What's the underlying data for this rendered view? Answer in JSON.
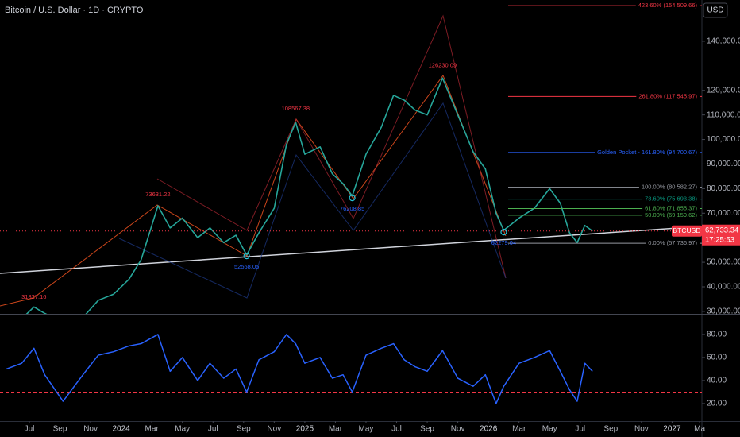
{
  "header": {
    "title": "Bitcoin / U.S. Dollar · 1D · CRYPTO",
    "currency": "USD"
  },
  "chart_data": [
    {
      "type": "line",
      "x": [
        4.5,
        5.5,
        6.3,
        7,
        8.2,
        9.5,
        10.5,
        11.5,
        12.5,
        13.3,
        14.4,
        15.2,
        16,
        17,
        17.8,
        18.7,
        19.5,
        20.2,
        21,
        22,
        22.8,
        23.4,
        24,
        25,
        25.8,
        26.5,
        27.1,
        28,
        29,
        29.8,
        30.5,
        31.2,
        32,
        33,
        34,
        35,
        35.8,
        36.5,
        37,
        38,
        39,
        40,
        40.7,
        41.3,
        41.8,
        42.3,
        42.8
      ],
      "series": [
        {
          "name": "BTCUSD",
          "color": "#26a69a",
          "values": [
            28500,
            27000,
            31800,
            29200,
            25500,
            27500,
            34500,
            37000,
            43000,
            51000,
            73000,
            64000,
            68000,
            60000,
            64000,
            58000,
            61000,
            53000,
            62000,
            72000,
            98000,
            107000,
            94000,
            97000,
            86000,
            82000,
            77000,
            94000,
            105000,
            118000,
            116000,
            112000,
            110000,
            125000,
            110000,
            95000,
            88000,
            70000,
            63000,
            68000,
            72000,
            80000,
            74000,
            62000,
            58000,
            65000,
            62733.34
          ]
        }
      ],
      "xlim": [
        4.08,
        49.95
      ],
      "ylim": [
        29000,
        156800
      ],
      "yticks": [
        {
          "value": 30000,
          "label": "30,000.00"
        },
        {
          "value": 40000,
          "label": "40,000.00"
        },
        {
          "value": 50000,
          "label": "50,000.00"
        },
        {
          "value": 70000,
          "label": "70,000.00"
        },
        {
          "value": 80000,
          "label": "80,000.00"
        },
        {
          "value": 90000,
          "label": "90,000.00"
        },
        {
          "value": 100000,
          "label": "100,000.00"
        },
        {
          "value": 110000,
          "label": "110,000.00"
        },
        {
          "value": 120000,
          "label": "120,000.00"
        },
        {
          "value": 140000,
          "label": "140,000.00"
        }
      ],
      "last_price": {
        "value": 62733.34,
        "label": "62,733.34"
      },
      "countdown": "17:25:53",
      "pivots": [
        {
          "x": 6.3,
          "value": 31827.16,
          "color": "#f23645",
          "side": "high"
        },
        {
          "x": 14.4,
          "value": 73631.22,
          "color": "#f23645",
          "side": "high"
        },
        {
          "x": 20.2,
          "value": 52568.05,
          "color": "#2962ff",
          "side": "low"
        },
        {
          "x": 23.4,
          "value": 108567.38,
          "color": "#f23645",
          "side": "high"
        },
        {
          "x": 27.1,
          "value": 76208.85,
          "color": "#2962ff",
          "side": "low"
        },
        {
          "x": 33,
          "value": 126230.09,
          "color": "#f23645",
          "side": "high"
        },
        {
          "x": 37,
          "value": 62279.04,
          "color": "#2962ff",
          "side": "low"
        }
      ],
      "fib_levels": [
        {
          "value": 154509.66,
          "label": "423.60% (154,509.66)",
          "color": "#f23645"
        },
        {
          "value": 117545.97,
          "label": "261.80% (117,545.97)",
          "color": "#f23645"
        },
        {
          "value": 94700.67,
          "label": "Golden Pocket - 161.80% (94,700.67)",
          "color": "#2962ff"
        },
        {
          "value": 80582.27,
          "label": "100.00% (80,582.27)",
          "color": "#9598a1"
        },
        {
          "value": 75693.38,
          "label": "78.60% (75,693.38)",
          "color": "#089981"
        },
        {
          "value": 71855.37,
          "label": "61.80% (71,855.37)",
          "color": "#4caf50"
        },
        {
          "value": 69159.62,
          "label": "50.00% (69,159.62)",
          "color": "#4caf50"
        },
        {
          "value": 57736.97,
          "label": "0.00% (57,736.97)",
          "color": "#9598a1"
        }
      ]
    },
    {
      "type": "line",
      "x": [
        4.5,
        5.5,
        6.3,
        7,
        8.2,
        9.5,
        10.5,
        11.5,
        12.5,
        13.3,
        14.4,
        15.2,
        16,
        17,
        17.8,
        18.7,
        19.5,
        20.2,
        21,
        22,
        22.8,
        23.4,
        24,
        25,
        25.8,
        26.5,
        27.1,
        28,
        29,
        29.8,
        30.5,
        31.2,
        32,
        33,
        34,
        35,
        35.8,
        36.5,
        37,
        38,
        39,
        40,
        40.7,
        41.3,
        41.8,
        42.3,
        42.8
      ],
      "series": [
        {
          "color": "#2962ff",
          "values": [
            50,
            55,
            68,
            45,
            22,
            45,
            62,
            65,
            70,
            72,
            80,
            48,
            60,
            40,
            55,
            42,
            50,
            30,
            58,
            65,
            80,
            72,
            55,
            60,
            42,
            45,
            30,
            62,
            68,
            72,
            58,
            52,
            48,
            66,
            42,
            35,
            45,
            20,
            35,
            55,
            60,
            66,
            48,
            32,
            22,
            55,
            48
          ]
        }
      ],
      "xlim": [
        4.08,
        49.95
      ],
      "ylim": [
        4.8,
        97.2
      ],
      "yticks": [
        {
          "value": 20,
          "label": "20.00"
        },
        {
          "value": 40,
          "label": "40.00"
        },
        {
          "value": 60,
          "label": "60.00"
        },
        {
          "value": 80,
          "label": "80.00"
        }
      ],
      "levels": [
        {
          "value": 70,
          "color": "#4caf50"
        },
        {
          "value": 50,
          "color": "#787b86"
        },
        {
          "value": 30,
          "color": "#f23645"
        }
      ],
      "xticks": [
        {
          "value": 6,
          "label": "Jul"
        },
        {
          "value": 8,
          "label": "Sep"
        },
        {
          "value": 10,
          "label": "Nov"
        },
        {
          "value": 12,
          "label": "2024"
        },
        {
          "value": 14,
          "label": "Mar"
        },
        {
          "value": 16,
          "label": "May"
        },
        {
          "value": 18,
          "label": "Jul"
        },
        {
          "value": 20,
          "label": "Sep"
        },
        {
          "value": 22,
          "label": "Nov"
        },
        {
          "value": 24,
          "label": "2025"
        },
        {
          "value": 26,
          "label": "Mar"
        },
        {
          "value": 28,
          "label": "May"
        },
        {
          "value": 30,
          "label": "Jul"
        },
        {
          "value": 32,
          "label": "Sep"
        },
        {
          "value": 34,
          "label": "Nov"
        },
        {
          "value": 36,
          "label": "2026"
        },
        {
          "value": 38,
          "label": "Mar"
        },
        {
          "value": 40,
          "label": "May"
        },
        {
          "value": 42,
          "label": "Jul"
        },
        {
          "value": 44,
          "label": "Sep"
        },
        {
          "value": 46,
          "label": "Nov"
        },
        {
          "value": 48,
          "label": "2027"
        },
        {
          "value": 49.8,
          "label": "Ma"
        }
      ]
    }
  ]
}
